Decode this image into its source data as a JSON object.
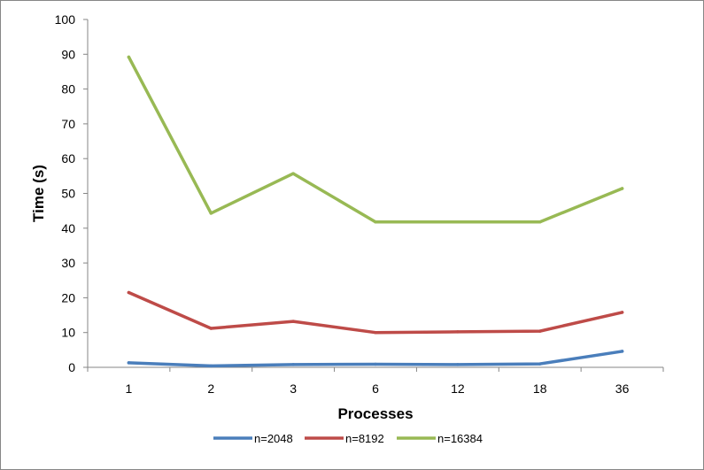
{
  "chart_data": {
    "type": "line",
    "xlabel": "Processes",
    "ylabel": "Time (s)",
    "categories": [
      "1",
      "2",
      "3",
      "6",
      "12",
      "18",
      "36"
    ],
    "ylim": [
      0,
      100
    ],
    "yticks": [
      0,
      10,
      20,
      30,
      40,
      50,
      60,
      70,
      80,
      90,
      100
    ],
    "grid": false,
    "legend_position": "bottom",
    "series": [
      {
        "name": "n=2048",
        "color": "#4a7ebb",
        "values": [
          1.3,
          0.4,
          0.8,
          0.9,
          0.8,
          1.0,
          4.6
        ]
      },
      {
        "name": "n=8192",
        "color": "#be4b48",
        "values": [
          21.5,
          11.2,
          13.2,
          10.0,
          10.2,
          10.4,
          15.8
        ]
      },
      {
        "name": "n=16384",
        "color": "#98b954",
        "values": [
          89.2,
          44.3,
          55.7,
          41.8,
          41.8,
          41.8,
          51.4
        ]
      }
    ]
  }
}
